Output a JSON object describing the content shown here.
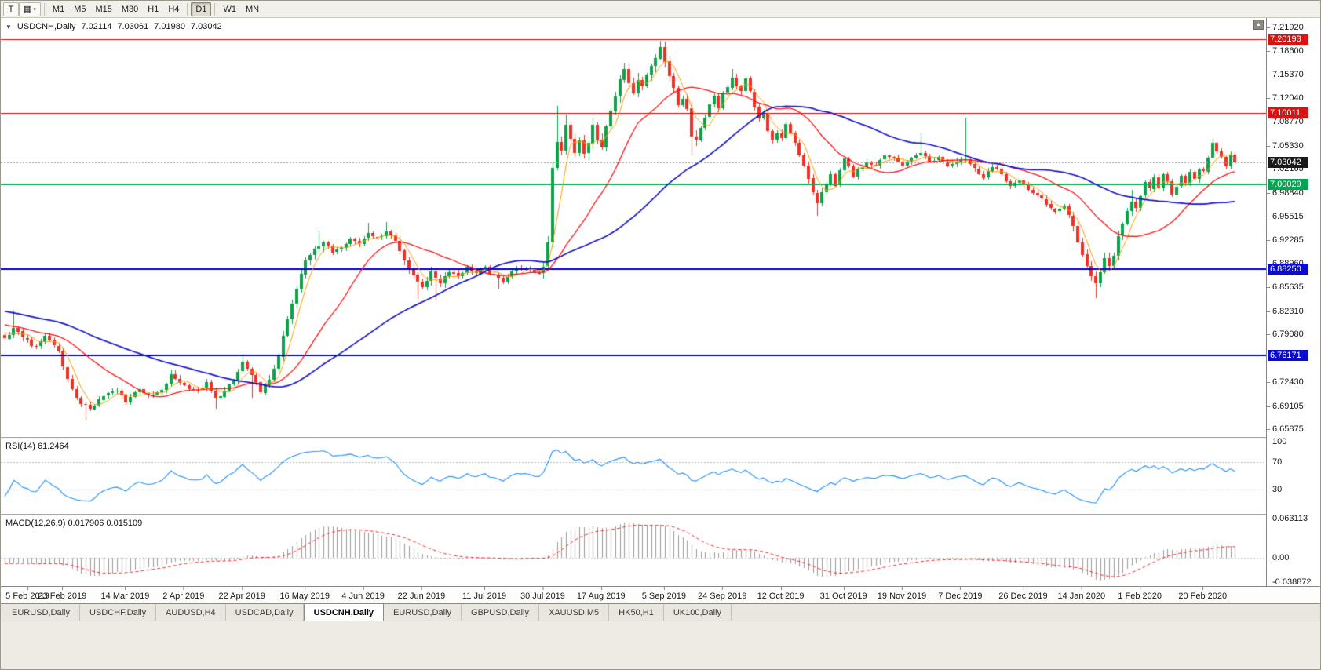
{
  "toolbar": {
    "icon_buttons": [
      {
        "name": "templates-button",
        "glyph": "T",
        "dropdown": false
      },
      {
        "name": "line-studies-button",
        "glyph": "▦",
        "dropdown": true
      }
    ],
    "timeframes": [
      {
        "label": "M1",
        "active": false,
        "sep_before": false
      },
      {
        "label": "M5",
        "active": false,
        "sep_before": false
      },
      {
        "label": "M15",
        "active": false,
        "sep_before": false
      },
      {
        "label": "M30",
        "active": false,
        "sep_before": false
      },
      {
        "label": "H1",
        "active": false,
        "sep_before": false
      },
      {
        "label": "H4",
        "active": false,
        "sep_before": false
      },
      {
        "label": "D1",
        "active": true,
        "sep_before": true
      },
      {
        "label": "W1",
        "active": false,
        "sep_before": true
      },
      {
        "label": "MN",
        "active": false,
        "sep_before": false
      }
    ]
  },
  "chart": {
    "info": {
      "dropdown_glyph": "▼",
      "symbol": "USDCNH,Daily",
      "open": "7.02114",
      "high": "7.03061",
      "low": "7.01980",
      "close": "7.03042"
    },
    "view": {
      "p_max": 7.232,
      "p_min": 6.648
    },
    "price_ticks": [
      "7.21920",
      "7.18600",
      "7.15370",
      "7.12040",
      "7.08770",
      "7.05330",
      "7.02165",
      "6.98840",
      "6.95515",
      "6.92285",
      "6.88960",
      "6.85635",
      "6.82310",
      "6.79080",
      "6.75755",
      "6.72430",
      "6.69105",
      "6.65875"
    ],
    "badges": [
      {
        "value": "7.20193",
        "color": "#dd1111"
      },
      {
        "value": "7.10011",
        "color": "#dd1111"
      },
      {
        "value": "7.03042",
        "color": "#1a1a1a"
      },
      {
        "value": "7.00029",
        "color": "#00a651"
      },
      {
        "value": "6.88250",
        "color": "#0b0bd0"
      },
      {
        "value": "6.76171",
        "color": "#0b0bd0"
      }
    ],
    "rsi_label": "RSI(14) 61.2464",
    "macd_label": "MACD(12,26,9) 0.017906 0.015109",
    "rsi_scale": [
      "100",
      "70",
      "30"
    ],
    "macd_scale": [
      "0.063113",
      "0.00",
      "-0.038872"
    ]
  },
  "chart_data": {
    "type": "candlestick",
    "symbol": "USDCNH",
    "period": "Daily",
    "ohlc_current": {
      "open": 7.02114,
      "high": 7.03061,
      "low": 7.0198,
      "close": 7.03042
    },
    "last_close": 7.03042,
    "bars": 275,
    "price_range_visible": [
      6.648,
      7.232
    ],
    "x_axis_dates": [
      [
        "5 Feb 2019",
        0
      ],
      [
        "23 Feb 2019",
        13
      ],
      [
        "14 Mar 2019",
        27
      ],
      [
        "2 Apr 2019",
        40
      ],
      [
        "22 Apr 2019",
        53
      ],
      [
        "16 May 2019",
        67
      ],
      [
        "4 Jun 2019",
        80
      ],
      [
        "22 Jun 2019",
        93
      ],
      [
        "11 Jul 2019",
        107
      ],
      [
        "30 Jul 2019",
        120
      ],
      [
        "17 Aug 2019",
        133
      ],
      [
        "5 Sep 2019",
        147
      ],
      [
        "24 Sep 2019",
        160
      ],
      [
        "12 Oct 2019",
        173
      ],
      [
        "31 Oct 2019",
        187
      ],
      [
        "19 Nov 2019",
        200
      ],
      [
        "7 Dec 2019",
        213
      ],
      [
        "26 Dec 2019",
        227
      ],
      [
        "14 Jan 2020",
        240
      ],
      [
        "1 Feb 2020",
        253
      ],
      [
        "20 Feb 2020",
        267
      ]
    ],
    "horizontal_lines": [
      {
        "price": 7.20193,
        "color": "#e00000",
        "width": 1
      },
      {
        "price": 7.10011,
        "color": "#e00000",
        "width": 1
      },
      {
        "price": 7.00029,
        "color": "#00b050",
        "width": 2
      },
      {
        "price": 6.8825,
        "color": "#0000cc",
        "width": 2
      },
      {
        "price": 6.76171,
        "color": "#0000cc",
        "width": 2
      }
    ],
    "current_price_line": {
      "price": 7.03042,
      "color": "#9a9a9a",
      "style": "dot"
    },
    "candle_colors": {
      "up": "#0ba24a",
      "down": "#ee3026"
    },
    "close_anchors": [
      0,
      6.785,
      2,
      6.798,
      4,
      6.788,
      7,
      6.772,
      9,
      6.79,
      12,
      6.768,
      14,
      6.728,
      17,
      6.692,
      19,
      6.688,
      22,
      6.706,
      25,
      6.712,
      27,
      6.698,
      30,
      6.716,
      32,
      6.704,
      35,
      6.712,
      37,
      6.734,
      40,
      6.72,
      43,
      6.712,
      45,
      6.722,
      47,
      6.701,
      49,
      6.712,
      51,
      6.726,
      53,
      6.752,
      55,
      6.732,
      57,
      6.712,
      59,
      6.726,
      61,
      6.762,
      63,
      6.812,
      65,
      6.854,
      67,
      6.894,
      69,
      6.912,
      71,
      6.92,
      73,
      6.906,
      75,
      6.914,
      77,
      6.924,
      79,
      6.918,
      81,
      6.934,
      83,
      6.924,
      85,
      6.936,
      87,
      6.922,
      89,
      6.896,
      91,
      6.872,
      93,
      6.858,
      95,
      6.876,
      97,
      6.864,
      99,
      6.88,
      101,
      6.872,
      103,
      6.884,
      105,
      6.876,
      107,
      6.883,
      109,
      6.872,
      111,
      6.866,
      113,
      6.879,
      115,
      6.884,
      117,
      6.879,
      119,
      6.877,
      120,
      6.887,
      121,
      6.92,
      122,
      7.024,
      123,
      7.058,
      124,
      7.046,
      125,
      7.084,
      126,
      7.062,
      127,
      7.044,
      128,
      7.061,
      129,
      7.042,
      130,
      7.06,
      131,
      7.082,
      132,
      7.062,
      133,
      7.049,
      134,
      7.079,
      135,
      7.101,
      136,
      7.122,
      137,
      7.145,
      138,
      7.161,
      139,
      7.142,
      140,
      7.127,
      141,
      7.146,
      142,
      7.135,
      143,
      7.152,
      144,
      7.167,
      145,
      7.177,
      146,
      7.19,
      147,
      7.171,
      148,
      7.149,
      149,
      7.137,
      150,
      7.113,
      151,
      7.122,
      152,
      7.108,
      153,
      7.068,
      154,
      7.062,
      155,
      7.079,
      156,
      7.094,
      157,
      7.112,
      158,
      7.121,
      159,
      7.108,
      160,
      7.126,
      161,
      7.134,
      162,
      7.147,
      163,
      7.136,
      164,
      7.128,
      165,
      7.147,
      166,
      7.13,
      167,
      7.108,
      168,
      7.092,
      169,
      7.098,
      170,
      7.076,
      171,
      7.062,
      172,
      7.072,
      173,
      7.066,
      174,
      7.083,
      175,
      7.072,
      176,
      7.057,
      177,
      7.042,
      178,
      7.028,
      179,
      7.008,
      180,
      6.986,
      181,
      6.972,
      182,
      6.988,
      183,
      7.002,
      184,
      7.012,
      185,
      6.998,
      186,
      7.021,
      187,
      7.035,
      188,
      7.027,
      189,
      7.012,
      190,
      7.022,
      192,
      7.031,
      194,
      7.027,
      196,
      7.043,
      198,
      7.035,
      200,
      7.028,
      202,
      7.036,
      204,
      7.046,
      206,
      7.031,
      208,
      7.038,
      210,
      7.026,
      212,
      7.034,
      214,
      7.036,
      216,
      7.021,
      218,
      7.012,
      220,
      7.024,
      222,
      7.015,
      224,
      6.998,
      226,
      7.004,
      228,
      6.994,
      230,
      6.984,
      232,
      6.972,
      234,
      6.964,
      236,
      6.969,
      237,
      6.958,
      238,
      6.941,
      239,
      6.921,
      240,
      6.902,
      241,
      6.884,
      242,
      6.871,
      243,
      6.862,
      244,
      6.878,
      245,
      6.896,
      246,
      6.886,
      247,
      6.903,
      248,
      6.926,
      249,
      6.943,
      250,
      6.962,
      251,
      6.978,
      252,
      6.969,
      253,
      6.986,
      254,
      7.002,
      255,
      6.992,
      256,
      7.008,
      257,
      6.996,
      258,
      7.013,
      259,
      7.002,
      260,
      6.988,
      261,
      6.997,
      262,
      7.012,
      263,
      7.004,
      264,
      7.018,
      265,
      7.008,
      266,
      7.022,
      267,
      7.016,
      268,
      7.036,
      269,
      7.056,
      270,
      7.047,
      271,
      7.037,
      272,
      7.025,
      273,
      7.043,
      274,
      7.0304
    ],
    "spikes": [
      {
        "i": 2,
        "high": 6.824
      },
      {
        "i": 18,
        "low": 6.672
      },
      {
        "i": 37,
        "high": 6.742
      },
      {
        "i": 47,
        "low": 6.687
      },
      {
        "i": 53,
        "high": 6.764
      },
      {
        "i": 55,
        "low": 6.703
      },
      {
        "i": 70,
        "high": 6.934
      },
      {
        "i": 81,
        "high": 6.947
      },
      {
        "i": 85,
        "high": 6.948
      },
      {
        "i": 92,
        "low": 6.841
      },
      {
        "i": 96,
        "low": 6.838
      },
      {
        "i": 110,
        "low": 6.855
      },
      {
        "i": 123,
        "high": 7.11
      },
      {
        "i": 125,
        "high": 7.097
      },
      {
        "i": 146,
        "high": 7.1965
      },
      {
        "i": 153,
        "low": 7.041
      },
      {
        "i": 162,
        "high": 7.161
      },
      {
        "i": 181,
        "low": 6.956
      },
      {
        "i": 204,
        "high": 7.071
      },
      {
        "i": 214,
        "high": 7.093
      },
      {
        "i": 243,
        "low": 6.842
      },
      {
        "i": 251,
        "high": 6.993
      },
      {
        "i": 269,
        "high": 7.065
      }
    ],
    "vol_zones": [
      [
        59,
        71,
        1.6
      ],
      [
        88,
        98,
        1.5
      ],
      [
        120,
        156,
        1.9
      ],
      [
        176,
        184,
        1.4
      ],
      [
        237,
        252,
        1.5
      ]
    ],
    "moving_averages": [
      {
        "period": 5,
        "color": "#ff9a00",
        "width": 1
      },
      {
        "period": 20,
        "color": "#ff1111",
        "width": 1.3
      },
      {
        "period": 50,
        "color": "#1414cc",
        "width": 1.7
      }
    ],
    "rsi": {
      "period": 14,
      "current": 61.2464,
      "levels": [
        70,
        30
      ],
      "color": "#1e90ff",
      "range": [
        0,
        100
      ]
    },
    "macd": {
      "fast": 12,
      "slow": 26,
      "signal_period": 9,
      "macd_current": 0.017906,
      "signal_current": 0.015109,
      "range": [
        -0.038872,
        0.063113
      ],
      "hist_color": "#999999",
      "signal_color": "#ff2222"
    }
  },
  "tabs": [
    {
      "label": "EURUSD,Daily",
      "active": false
    },
    {
      "label": "USDCHF,Daily",
      "active": false
    },
    {
      "label": "AUDUSD,H4",
      "active": false
    },
    {
      "label": "USDCAD,Daily",
      "active": false
    },
    {
      "label": "USDCNH,Daily",
      "active": true
    },
    {
      "label": "EURUSD,Daily",
      "active": false
    },
    {
      "label": "GBPUSD,Daily",
      "active": false
    },
    {
      "label": "XAUUSD,M5",
      "active": false
    },
    {
      "label": "HK50,H1",
      "active": false
    },
    {
      "label": "UK100,Daily",
      "active": false
    }
  ]
}
